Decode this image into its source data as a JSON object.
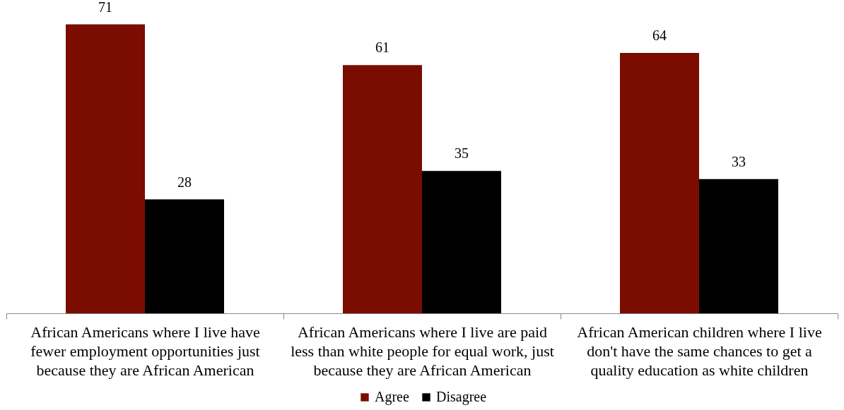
{
  "chart_data": {
    "type": "bar",
    "categories": [
      "African Americans where I live have fewer employment opportunities just because they are African American",
      "African Americans where I live are paid less than white people for equal work, just because they are African American",
      "African American children where I live don't have the same chances to get a quality education as white children"
    ],
    "series": [
      {
        "name": "Agree",
        "color": "#7b0c00",
        "values": [
          71,
          61,
          64
        ]
      },
      {
        "name": "Disagree",
        "color": "#000000",
        "values": [
          28,
          35,
          33
        ]
      }
    ],
    "data_labels": true,
    "legend": "bottom"
  }
}
